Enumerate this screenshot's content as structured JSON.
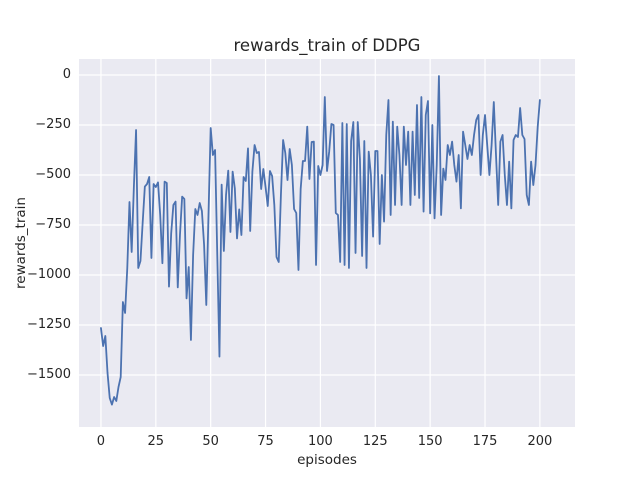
{
  "chart_data": {
    "type": "line",
    "title": "rewards_train of DDPG",
    "xlabel": "episodes",
    "ylabel": "rewards_train",
    "x_tick_labels": [
      "0",
      "25",
      "50",
      "75",
      "100",
      "125",
      "150",
      "175",
      "200"
    ],
    "x_tick_values": [
      0,
      25,
      50,
      75,
      100,
      125,
      150,
      175,
      200
    ],
    "y_tick_labels": [
      "0",
      "−250",
      "−500",
      "−750",
      "−1000",
      "−1250",
      "−1500"
    ],
    "y_tick_values": [
      0,
      -250,
      -500,
      -750,
      -1000,
      -1250,
      -1500
    ],
    "xlim": [
      -10,
      216
    ],
    "ylim": [
      -1760,
      80
    ],
    "grid": true,
    "legend_position": "none",
    "colors": {
      "line": "#4c72b0",
      "axes_background": "#eaeaf2",
      "grid": "#ffffff",
      "figure_background": "#ffffff",
      "text": "#262626"
    },
    "series": [
      {
        "name": "rewards_train",
        "x_start": 0,
        "x_step": 1,
        "values": [
          -1265,
          -1355,
          -1305,
          -1490,
          -1615,
          -1648,
          -1610,
          -1630,
          -1560,
          -1510,
          -1135,
          -1190,
          -965,
          -635,
          -885,
          -560,
          -275,
          -965,
          -930,
          -740,
          -558,
          -545,
          -510,
          -915,
          -545,
          -560,
          -537,
          -700,
          -941,
          -533,
          -540,
          -1058,
          -792,
          -650,
          -633,
          -1062,
          -800,
          -608,
          -620,
          -1117,
          -960,
          -1325,
          -900,
          -670,
          -700,
          -640,
          -680,
          -850,
          -1150,
          -700,
          -265,
          -400,
          -375,
          -900,
          -1408,
          -548,
          -880,
          -600,
          -478,
          -785,
          -483,
          -567,
          -817,
          -672,
          -800,
          -510,
          -530,
          -367,
          -780,
          -483,
          -350,
          -390,
          -385,
          -570,
          -470,
          -560,
          -655,
          -480,
          -505,
          -650,
          -910,
          -935,
          -600,
          -325,
          -390,
          -525,
          -370,
          -450,
          -670,
          -690,
          -975,
          -570,
          -430,
          -430,
          -258,
          -520,
          -335,
          -333,
          -950,
          -455,
          -500,
          -450,
          -110,
          -480,
          -383,
          -245,
          -250,
          -690,
          -700,
          -935,
          -240,
          -950,
          -245,
          -965,
          -330,
          -235,
          -890,
          -235,
          -420,
          -905,
          -330,
          -965,
          -383,
          -500,
          -808,
          -380,
          -380,
          -845,
          -500,
          -733,
          -300,
          -125,
          -700,
          -233,
          -650,
          -258,
          -400,
          -650,
          -258,
          -450,
          -283,
          -650,
          -283,
          -600,
          -150,
          -615,
          -110,
          -683,
          -200,
          -130,
          -692,
          -250,
          -717,
          -450,
          -5,
          -700,
          -468,
          -525,
          -350,
          -400,
          -333,
          -450,
          -533,
          -400,
          -667,
          -283,
          -350,
          -420,
          -350,
          -400,
          -300,
          -225,
          -200,
          -500,
          -300,
          -200,
          -350,
          -500,
          -350,
          -135,
          -400,
          -650,
          -333,
          -300,
          -500,
          -650,
          -433,
          -667,
          -325,
          -300,
          -310,
          -165,
          -300,
          -320,
          -600,
          -650,
          -433,
          -550,
          -450,
          -260,
          -125
        ]
      }
    ]
  }
}
